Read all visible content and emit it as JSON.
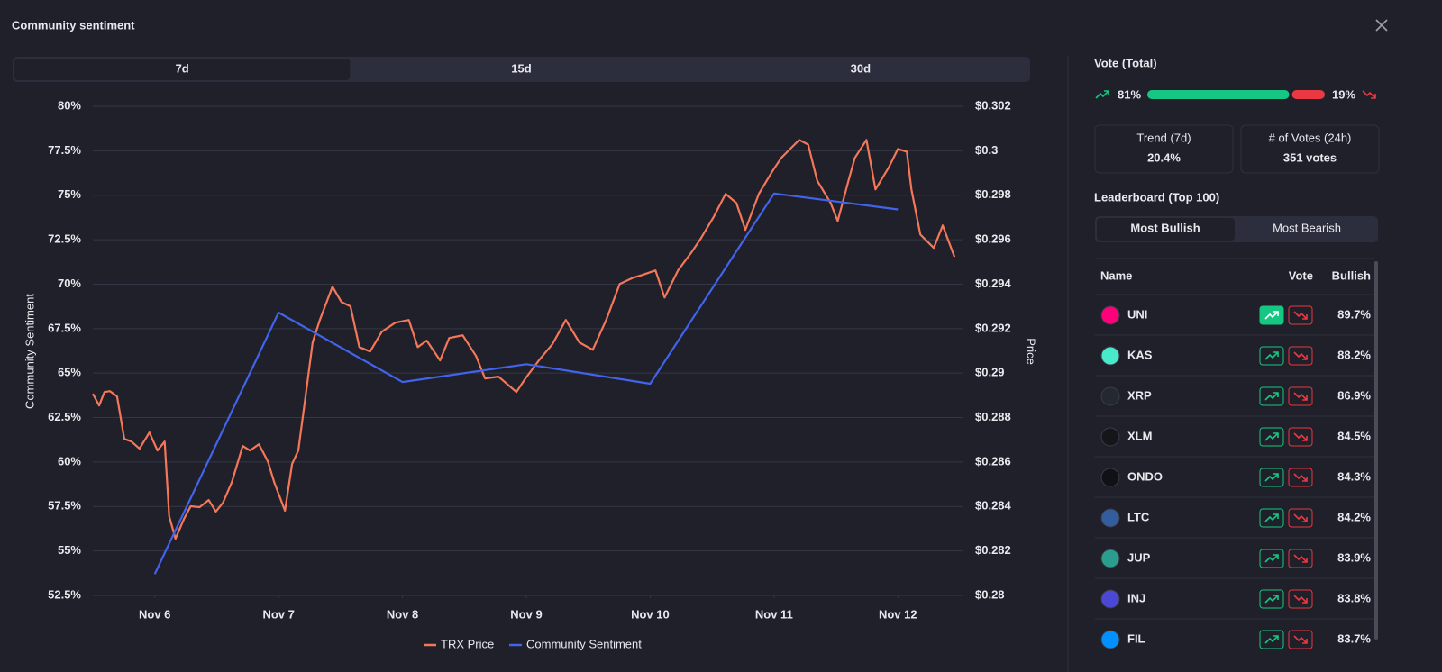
{
  "header": {
    "title": "Community sentiment"
  },
  "tabs": [
    "7d",
    "15d",
    "30d"
  ],
  "chart_data": {
    "type": "line",
    "xlim": [
      -0.5,
      6.5
    ],
    "xticks": [
      {
        "value": 0,
        "label": "Nov 6"
      },
      {
        "value": 1,
        "label": "Nov 7"
      },
      {
        "value": 2,
        "label": "Nov 8"
      },
      {
        "value": 3,
        "label": "Nov 9"
      },
      {
        "value": 4,
        "label": "Nov 10"
      },
      {
        "value": 5,
        "label": "Nov 11"
      },
      {
        "value": 6,
        "label": "Nov 12"
      }
    ],
    "ylim": [
      52.5,
      80
    ],
    "yticks": [
      {
        "value": 52.5,
        "label": "52.5%"
      },
      {
        "value": 55,
        "label": "55%"
      },
      {
        "value": 57.5,
        "label": "57.5%"
      },
      {
        "value": 60,
        "label": "60%"
      },
      {
        "value": 62.5,
        "label": "62.5%"
      },
      {
        "value": 65,
        "label": "65%"
      },
      {
        "value": 67.5,
        "label": "67.5%"
      },
      {
        "value": 70,
        "label": "70%"
      },
      {
        "value": 72.5,
        "label": "72.5%"
      },
      {
        "value": 75,
        "label": "75%"
      },
      {
        "value": 77.5,
        "label": "77.5%"
      },
      {
        "value": 80,
        "label": "80%"
      }
    ],
    "y2lim": [
      0.28,
      0.302
    ],
    "y2ticks": [
      {
        "value": 0.28,
        "label": "$0.28"
      },
      {
        "value": 0.282,
        "label": "$0.282"
      },
      {
        "value": 0.284,
        "label": "$0.284"
      },
      {
        "value": 0.286,
        "label": "$0.286"
      },
      {
        "value": 0.288,
        "label": "$0.288"
      },
      {
        "value": 0.29,
        "label": "$0.29"
      },
      {
        "value": 0.292,
        "label": "$0.292"
      },
      {
        "value": 0.294,
        "label": "$0.294"
      },
      {
        "value": 0.296,
        "label": "$0.296"
      },
      {
        "value": 0.298,
        "label": "$0.298"
      },
      {
        "value": 0.3,
        "label": "$0.3"
      },
      {
        "value": 0.302,
        "label": "$0.302"
      }
    ],
    "ylabel": "Community Sentiment",
    "y2label": "Price",
    "grid": true,
    "series": [
      {
        "name": "TRX Price",
        "color": "#f4775a",
        "axis": "y2",
        "x": [
          -0.5,
          -0.449,
          -0.406,
          -0.362,
          -0.304,
          -0.246,
          -0.188,
          -0.123,
          -0.043,
          0.022,
          0.08,
          0.116,
          0.167,
          0.239,
          0.29,
          0.362,
          0.435,
          0.493,
          0.551,
          0.623,
          0.71,
          0.768,
          0.841,
          0.913,
          0.964,
          1.051,
          1.109,
          1.159,
          1.217,
          1.275,
          1.333,
          1.435,
          1.507,
          1.58,
          1.652,
          1.739,
          1.833,
          1.942,
          2.051,
          2.123,
          2.196,
          2.304,
          2.377,
          2.486,
          2.594,
          2.667,
          2.775,
          2.92,
          2.993,
          3.101,
          3.21,
          3.319,
          3.428,
          3.536,
          3.645,
          3.754,
          3.862,
          3.935,
          4.043,
          4.116,
          4.225,
          4.333,
          4.406,
          4.514,
          4.609,
          4.696,
          4.768,
          4.877,
          4.986,
          5.058,
          5.13,
          5.203,
          5.275,
          5.348,
          5.457,
          5.514,
          5.601,
          5.652,
          5.746,
          5.819,
          5.928,
          6.0,
          6.072,
          6.109,
          6.181,
          6.29,
          6.362,
          6.457
        ],
        "values": [
          0.28907,
          0.28854,
          0.28915,
          0.28919,
          0.28895,
          0.28704,
          0.28692,
          0.2866,
          0.28733,
          0.28652,
          0.28692,
          0.28356,
          0.28255,
          0.28348,
          0.28401,
          0.28397,
          0.28429,
          0.28377,
          0.28417,
          0.2851,
          0.28672,
          0.28652,
          0.2868,
          0.28603,
          0.2851,
          0.28381,
          0.28591,
          0.28652,
          0.28895,
          0.29138,
          0.29239,
          0.29389,
          0.2932,
          0.293,
          0.29117,
          0.29097,
          0.29186,
          0.29227,
          0.29239,
          0.29117,
          0.29146,
          0.29057,
          0.29158,
          0.2917,
          0.29077,
          0.28976,
          0.28984,
          0.28915,
          0.28976,
          0.29057,
          0.2913,
          0.29239,
          0.29138,
          0.29105,
          0.29239,
          0.29401,
          0.29429,
          0.29441,
          0.29462,
          0.2934,
          0.29462,
          0.29543,
          0.29603,
          0.29704,
          0.29806,
          0.29765,
          0.29644,
          0.29806,
          0.29907,
          0.29968,
          0.30008,
          0.30049,
          0.30028,
          0.29866,
          0.29765,
          0.29684,
          0.29866,
          0.29968,
          0.30049,
          0.29826,
          0.29927,
          0.30008,
          0.29996,
          0.29826,
          0.29623,
          0.29563,
          0.29664,
          0.29522
        ]
      },
      {
        "name": "Community Sentiment",
        "color": "#4263eb",
        "x": [
          0,
          1,
          2,
          3,
          4,
          5,
          6
        ],
        "values": [
          53.7,
          68.4,
          64.5,
          65.5,
          64.4,
          75.1,
          74.2
        ]
      }
    ]
  },
  "vote": {
    "title": "Vote (Total)",
    "bullish": {
      "value": 81,
      "label": "81%"
    },
    "bearish": {
      "value": 19,
      "label": "19%"
    }
  },
  "stats": [
    {
      "label": "Trend (7d)",
      "value": "20.4%"
    },
    {
      "label": "# of Votes (24h)",
      "value": "351 votes"
    }
  ],
  "leaderboard": {
    "title": "Leaderboard (Top 100)",
    "toggle": [
      "Most Bullish",
      "Most Bearish"
    ],
    "columns": [
      "Name",
      "Vote",
      "Bullish"
    ],
    "rows": [
      [
        "UNI",
        "89.7%"
      ],
      [
        "KAS",
        "88.2%"
      ],
      [
        "XRP",
        "86.9%"
      ],
      [
        "XLM",
        "84.5%"
      ],
      [
        "ONDO",
        "84.3%"
      ],
      [
        "LTC",
        "84.2%"
      ],
      [
        "JUP",
        "83.9%"
      ],
      [
        "INJ",
        "83.8%"
      ],
      [
        "FIL",
        "83.7%"
      ]
    ]
  }
}
